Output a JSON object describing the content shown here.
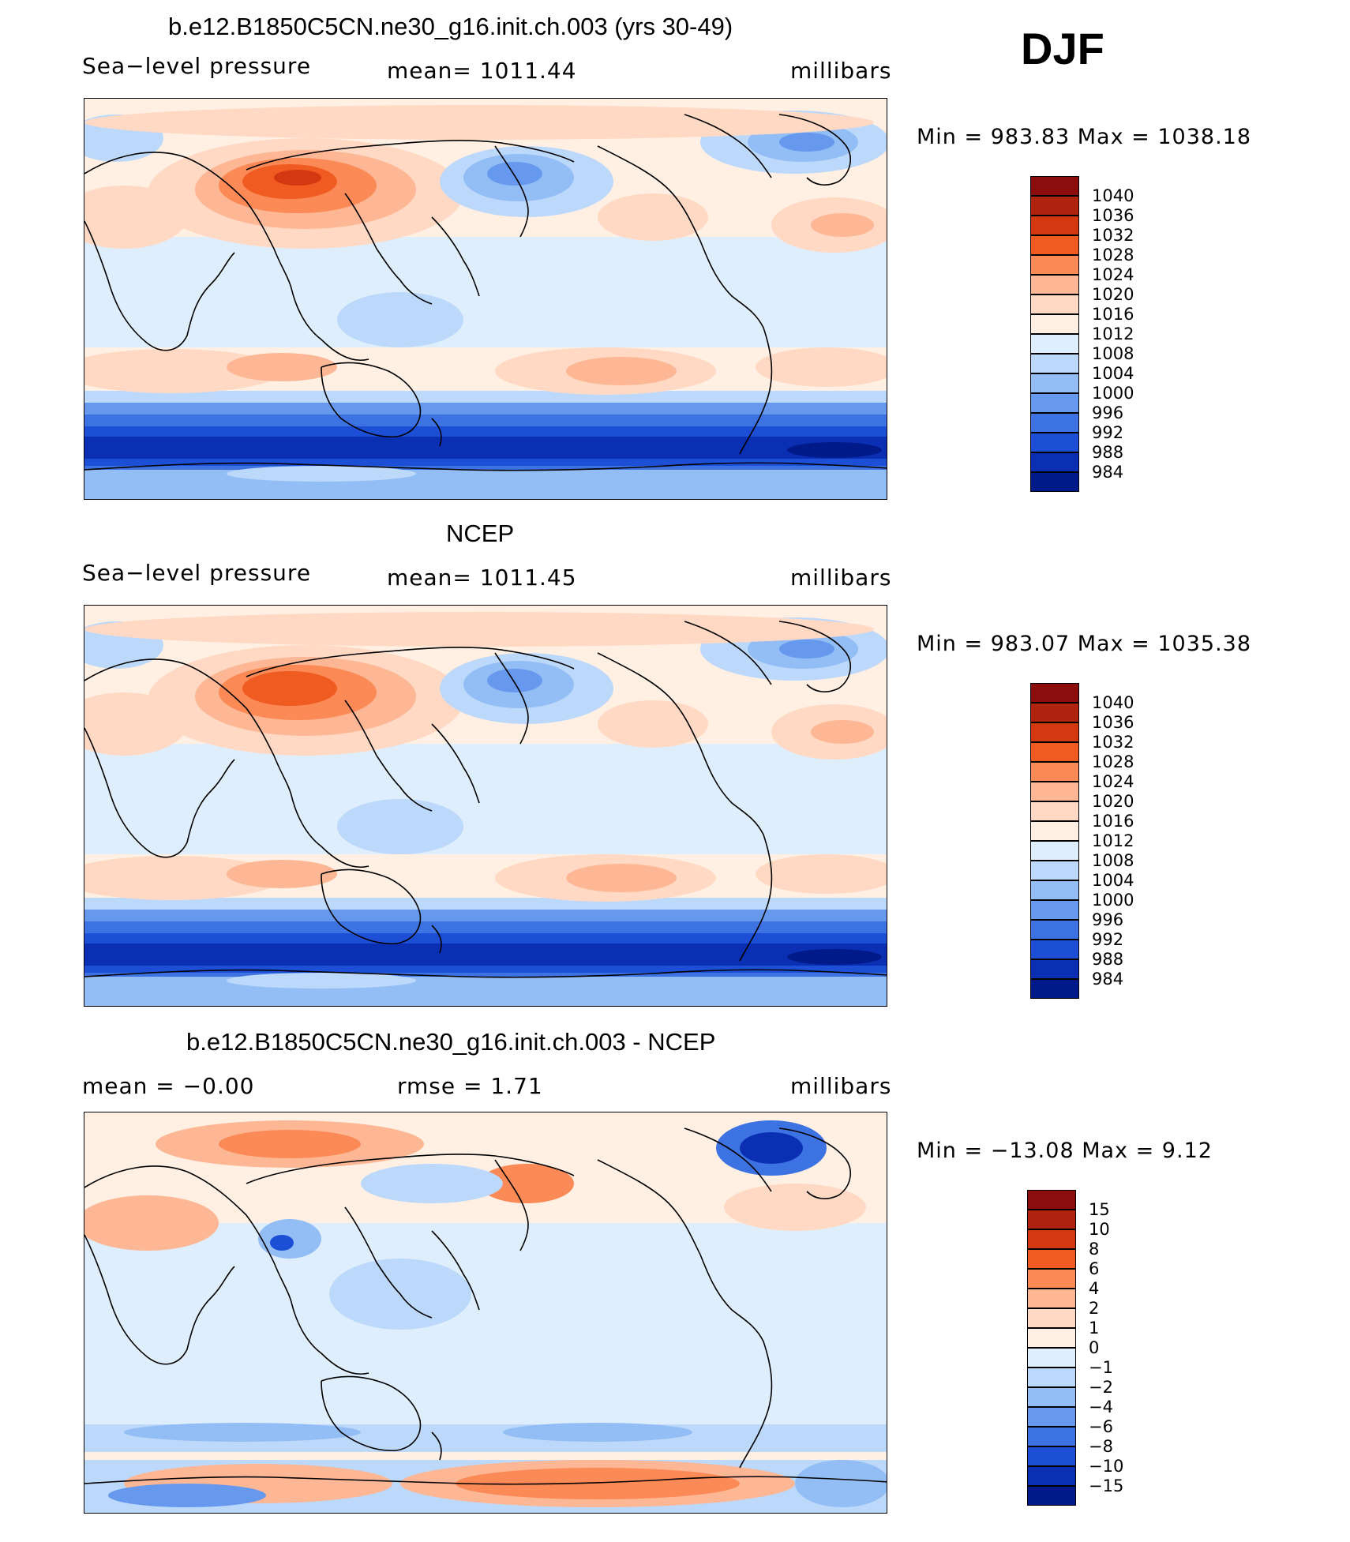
{
  "season": "DJF",
  "units": "millibars",
  "panels": [
    {
      "title": "b.e12.B1850C5CN.ne30_g16.init.ch.003 (yrs 30-49)",
      "variable": "Sea−level pressure",
      "stat_text": "mean=  1011.44",
      "units": "millibars",
      "minmax": "Min  =  983.83  Max  =  1038.18",
      "field": "model"
    },
    {
      "title": "NCEP",
      "variable": "Sea−level pressure",
      "stat_text": "mean=  1011.45",
      "units": "millibars",
      "minmax": "Min  =  983.07  Max  =  1035.38",
      "field": "obs"
    },
    {
      "title": "b.e12.B1850C5CN.ne30_g16.init.ch.003 - NCEP",
      "variable": "mean  =    −0.00",
      "stat_text": "rmse  =     1.71",
      "units": "millibars",
      "minmax": "Min  =  −13.08  Max  =     9.12",
      "field": "diff"
    }
  ],
  "colorbars": {
    "abs": {
      "colors": [
        "#8c0d0d",
        "#b0230f",
        "#d33810",
        "#ef5b21",
        "#fb8a57",
        "#fdb795",
        "#ffd9c4",
        "#fff0e3",
        "#dfeefc",
        "#bcd8fa",
        "#93bdf5",
        "#6699ee",
        "#3d72e2",
        "#1c4fd6",
        "#0a2fb3",
        "#001a8a"
      ],
      "labels": [
        "1040",
        "1036",
        "1032",
        "1028",
        "1024",
        "1020",
        "1016",
        "1012",
        "1008",
        "1004",
        "1000",
        "996",
        "992",
        "988",
        "984"
      ]
    },
    "diff": {
      "colors": [
        "#8c0d0d",
        "#b0230f",
        "#d33810",
        "#ef5b21",
        "#fb8a57",
        "#fdb795",
        "#ffd9c4",
        "#fff0e3",
        "#dfeefc",
        "#bcd8fa",
        "#93bdf5",
        "#6699ee",
        "#3d72e2",
        "#1c4fd6",
        "#0a2fb3",
        "#001a8a"
      ],
      "labels": [
        "15",
        "10",
        "8",
        "6",
        "4",
        "2",
        "1",
        "0",
        "−1",
        "−2",
        "−4",
        "−6",
        "−8",
        "−10",
        "−15"
      ]
    }
  }
}
